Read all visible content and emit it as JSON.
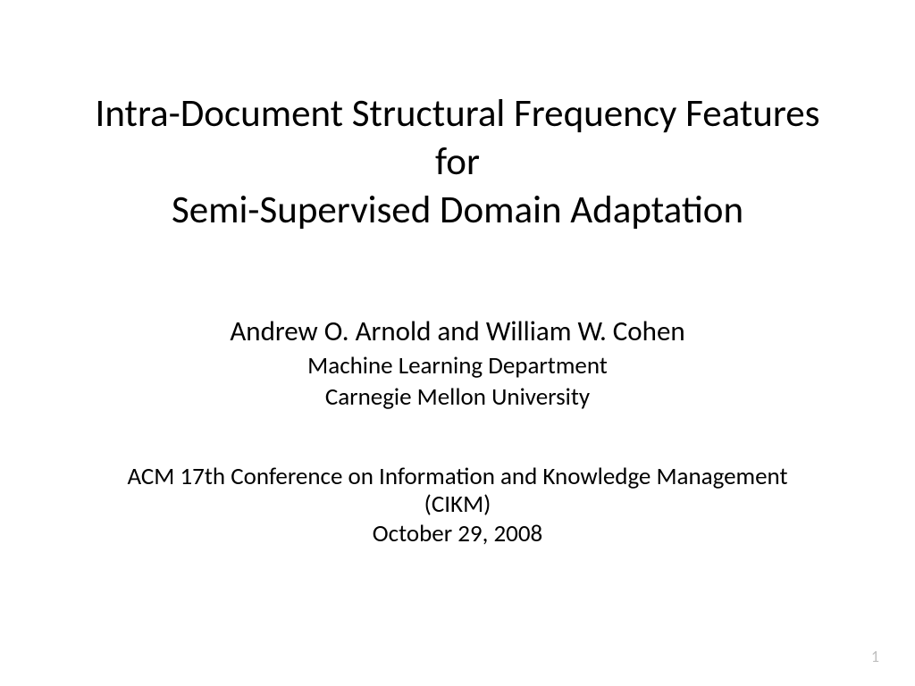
{
  "title": {
    "line1": "Intra-Document Structural Frequency Features",
    "line2": "for",
    "line3": "Semi-Supervised Domain Adaptation"
  },
  "authors": {
    "names": "Andrew O. Arnold and William W. Cohen",
    "department": "Machine Learning Department",
    "university": "Carnegie Mellon University"
  },
  "venue": {
    "conference_line1": "ACM 17th Conference on Information and Knowledge Management",
    "conference_line2": "(CIKM)",
    "date": "October 29, 2008"
  },
  "page_number": "1",
  "styling": {
    "background_color": "#ffffff",
    "text_color": "#000000",
    "page_number_color": "#bfbfbf",
    "title_fontsize": 43,
    "authors_fontsize": 31,
    "dept_fontsize": 27,
    "venue_fontsize": 27,
    "page_number_fontsize": 18,
    "font_family": "Calibri"
  }
}
